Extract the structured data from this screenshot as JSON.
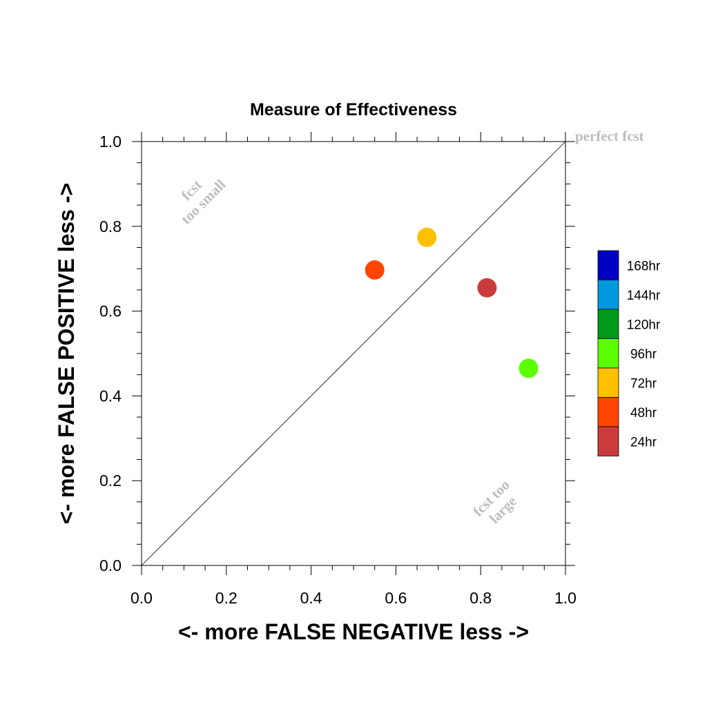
{
  "chart_data": {
    "type": "scatter",
    "title": "Measure of Effectiveness",
    "xlabel": "<- more   FALSE NEGATIVE   less ->",
    "ylabel": "<- more   FALSE POSITIVE   less ->",
    "xlim": [
      0.0,
      1.0
    ],
    "ylim": [
      0.0,
      1.0
    ],
    "x_ticks": [
      0.0,
      0.2,
      0.4,
      0.6,
      0.8,
      1.0
    ],
    "y_ticks": [
      0.0,
      0.2,
      0.4,
      0.6,
      0.8,
      1.0
    ],
    "x_tick_labels": [
      "0.0",
      "0.2",
      "0.4",
      "0.6",
      "0.8",
      "1.0"
    ],
    "y_tick_labels": [
      "0.0",
      "0.2",
      "0.4",
      "0.6",
      "0.8",
      "1.0"
    ],
    "grid": false,
    "reference_line": "diagonal",
    "annotations": [
      {
        "id": "perfect",
        "text": "perfect fcst"
      },
      {
        "id": "small",
        "lines": [
          "fcst",
          "too small"
        ]
      },
      {
        "id": "large",
        "lines": [
          "fcst too",
          "large"
        ]
      }
    ],
    "points": [
      {
        "label": "24hr",
        "x": 0.815,
        "y": 0.655,
        "color": "#cc3b3b"
      },
      {
        "label": "48hr",
        "x": 0.55,
        "y": 0.697,
        "color": "#ff4500"
      },
      {
        "label": "72hr",
        "x": 0.673,
        "y": 0.774,
        "color": "#ffc000"
      },
      {
        "label": "96hr",
        "x": 0.913,
        "y": 0.465,
        "color": "#5cff00"
      }
    ],
    "legend": {
      "position": "right",
      "items": [
        {
          "label": "168hr",
          "color": "#0000c4"
        },
        {
          "label": "144hr",
          "color": "#0099e0"
        },
        {
          "label": "120hr",
          "color": "#009a1a"
        },
        {
          "label": "96hr",
          "color": "#5cff00"
        },
        {
          "label": "72hr",
          "color": "#ffc000"
        },
        {
          "label": "48hr",
          "color": "#ff4500"
        },
        {
          "label": "24hr",
          "color": "#cc3b3b"
        }
      ]
    }
  }
}
